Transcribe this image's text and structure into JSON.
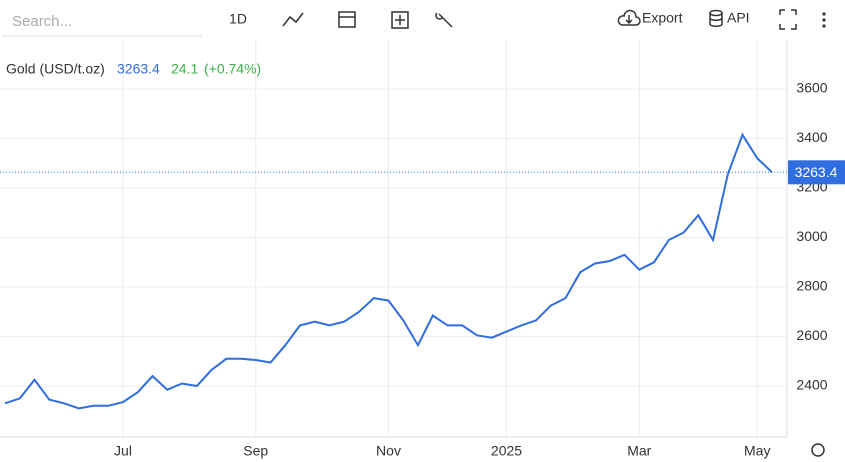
{
  "toolbar": {
    "search_placeholder": "Search...",
    "interval": "1D",
    "export": "Export",
    "api": "API"
  },
  "chart_data": {
    "type": "line",
    "title": "Gold (USD/t.oz)",
    "change": "24.1",
    "change_pct": "(+0.74%)",
    "color": "#2f6de1",
    "grid": true,
    "categories": [
      null,
      null,
      null,
      null,
      null,
      null,
      null,
      null,
      "Jul",
      null,
      null,
      null,
      null,
      null,
      null,
      null,
      null,
      "Sep",
      null,
      null,
      null,
      null,
      null,
      null,
      null,
      null,
      "Nov",
      null,
      null,
      null,
      null,
      null,
      null,
      null,
      "2025",
      null,
      null,
      null,
      null,
      null,
      null,
      null,
      null,
      "Mar",
      null,
      null,
      null,
      null,
      null,
      null,
      null,
      "May",
      null
    ],
    "values": [
      2330,
      2350,
      2425,
      2345,
      2330,
      2310,
      2320,
      2320,
      2335,
      2375,
      2440,
      2385,
      2410,
      2400,
      2465,
      2510,
      2510,
      2505,
      2495,
      2565,
      2645,
      2660,
      2645,
      2660,
      2700,
      2755,
      2745,
      2665,
      2565,
      2685,
      2645,
      2645,
      2605,
      2595,
      2620,
      2645,
      2665,
      2725,
      2755,
      2860,
      2895,
      2905,
      2930,
      2870,
      2900,
      2990,
      3020,
      3090,
      2990,
      3255,
      3415,
      3320,
      3263.4
    ],
    "ylim": [
      2200,
      3800
    ],
    "yticks": [
      2400,
      2600,
      2800,
      3000,
      3200,
      3400,
      3600
    ]
  }
}
